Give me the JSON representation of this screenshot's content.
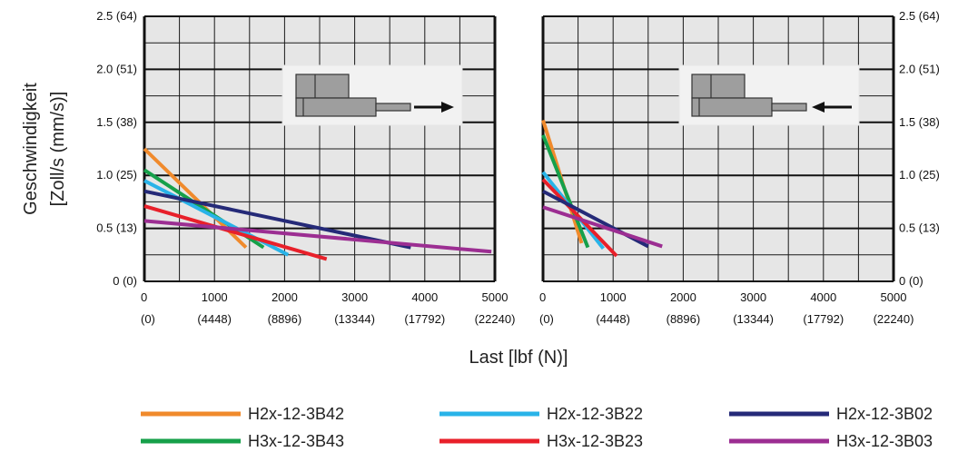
{
  "chart_data": {
    "type": "line",
    "ylabel_lines": [
      "Geschwindigkeit",
      "[Zoll/s (mm/s)]"
    ],
    "xlabel": "Last [lbf (N)]",
    "grid": true,
    "ylim": [
      0,
      2.5
    ],
    "y_ticks": [
      {
        "value": 0,
        "label": "0 (0)"
      },
      {
        "value": 0.5,
        "label": "0.5 (13)"
      },
      {
        "value": 1.0,
        "label": "1.0 (25)"
      },
      {
        "value": 1.5,
        "label": "1.5 (38)"
      },
      {
        "value": 2.0,
        "label": "2.0 (51)"
      },
      {
        "value": 2.5,
        "label": "2.5 (64)"
      }
    ],
    "x_ticks": [
      {
        "value": 0,
        "lbf": "0",
        "newton": "(0)"
      },
      {
        "value": 1000,
        "lbf": "1000",
        "newton": "(4448)"
      },
      {
        "value": 2000,
        "lbf": "2000",
        "newton": "(8896)"
      },
      {
        "value": 3000,
        "lbf": "3000",
        "newton": "(13344)"
      },
      {
        "value": 4000,
        "lbf": "4000",
        "newton": "(17792)"
      },
      {
        "value": 5000,
        "lbf": "5000",
        "newton": "(22240)"
      }
    ],
    "panels": [
      {
        "direction": "extend",
        "xlim": [
          0,
          5000
        ],
        "series": [
          {
            "name": "H2x-12-3B42",
            "color": "#f08a2c",
            "points": [
              [
                0,
                1.25
              ],
              [
                1450,
                0.32
              ]
            ]
          },
          {
            "name": "H3x-12-3B43",
            "color": "#16a04a",
            "points": [
              [
                0,
                1.05
              ],
              [
                1700,
                0.32
              ]
            ]
          },
          {
            "name": "H2x-12-3B22",
            "color": "#29b3e8",
            "points": [
              [
                0,
                0.95
              ],
              [
                2050,
                0.25
              ]
            ]
          },
          {
            "name": "H3x-12-3B23",
            "color": "#e8202a",
            "points": [
              [
                0,
                0.71
              ],
              [
                2600,
                0.21
              ]
            ]
          },
          {
            "name": "H2x-12-3B02",
            "color": "#252a78",
            "points": [
              [
                0,
                0.85
              ],
              [
                3800,
                0.32
              ]
            ]
          },
          {
            "name": "H3x-12-3B03",
            "color": "#9c2e92",
            "points": [
              [
                0,
                0.57
              ],
              [
                4950,
                0.28
              ]
            ]
          }
        ]
      },
      {
        "direction": "retract",
        "xlim": [
          0,
          5000
        ],
        "series": [
          {
            "name": "H2x-12-3B42",
            "color": "#f08a2c",
            "points": [
              [
                0,
                1.52
              ],
              [
                550,
                0.36
              ]
            ]
          },
          {
            "name": "H3x-12-3B43",
            "color": "#16a04a",
            "points": [
              [
                0,
                1.38
              ],
              [
                640,
                0.32
              ]
            ]
          },
          {
            "name": "H2x-12-3B22",
            "color": "#29b3e8",
            "points": [
              [
                0,
                1.03
              ],
              [
                860,
                0.31
              ]
            ]
          },
          {
            "name": "H3x-12-3B23",
            "color": "#e8202a",
            "points": [
              [
                0,
                0.96
              ],
              [
                1050,
                0.24
              ]
            ]
          },
          {
            "name": "H2x-12-3B02",
            "color": "#252a78",
            "points": [
              [
                0,
                0.85
              ],
              [
                1500,
                0.33
              ]
            ]
          },
          {
            "name": "H3x-12-3B03",
            "color": "#9c2e92",
            "points": [
              [
                0,
                0.7
              ],
              [
                1700,
                0.33
              ]
            ]
          }
        ]
      }
    ],
    "legend": [
      [
        "H2x-12-3B42",
        "H2x-12-3B22",
        "H2x-12-3B02"
      ],
      [
        "H3x-12-3B43",
        "H3x-12-3B23",
        "H3x-12-3B03"
      ]
    ]
  },
  "colors": {
    "plot_background": "#e6e6e6",
    "grid": "#1a1a1a",
    "actuator_body": "#9e9e9e",
    "arrow": "#111111"
  },
  "icons": {
    "extend_diagram": "actuator-extend-icon",
    "retract_diagram": "actuator-retract-icon"
  }
}
